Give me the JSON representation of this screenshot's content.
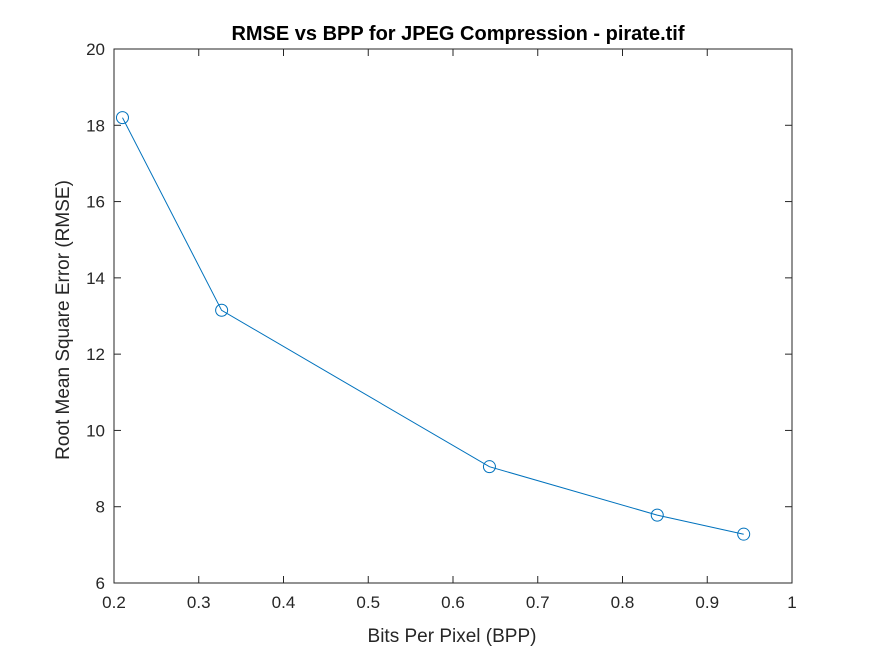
{
  "chart_data": {
    "type": "line",
    "title": "RMSE vs BPP for JPEG Compression - pirate.tif",
    "xlabel": "Bits Per Pixel (BPP)",
    "ylabel": "Root Mean Square Error (RMSE)",
    "xlim": [
      0.2,
      1
    ],
    "ylim": [
      6,
      20
    ],
    "xticks": [
      "0.2",
      "0.3",
      "0.4",
      "0.5",
      "0.6",
      "0.7",
      "0.8",
      "0.9",
      "1"
    ],
    "yticks": [
      "6",
      "8",
      "10",
      "12",
      "14",
      "16",
      "18",
      "20"
    ],
    "grid": false,
    "marker": "circle",
    "series": [
      {
        "x": [
          0.21,
          0.327,
          0.643,
          0.841,
          0.943
        ],
        "y": [
          18.2,
          13.15,
          9.05,
          7.78,
          7.28
        ],
        "color": "#0072bd"
      }
    ]
  }
}
